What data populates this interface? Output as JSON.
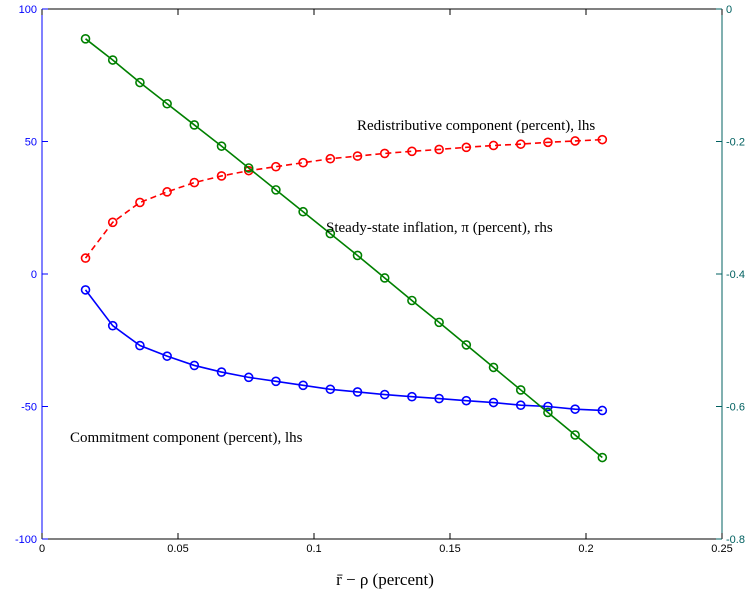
{
  "chart_data": {
    "type": "line",
    "xlabel": "r̄ − ρ (percent)",
    "xlim": [
      0,
      0.25
    ],
    "xticks": [
      "0",
      "0.05",
      "0.1",
      "0.15",
      "0.2",
      "0.25"
    ],
    "ylim_left": [
      -100,
      100
    ],
    "yticks_left": [
      "-100",
      "-50",
      "0",
      "50",
      "100"
    ],
    "ylim_right": [
      -0.8,
      0
    ],
    "yticks_right": [
      "-0.8",
      "-0.6",
      "-0.4",
      "-0.2",
      "0"
    ],
    "grid": false,
    "x": [
      0.016,
      0.026,
      0.036,
      0.046,
      0.056,
      0.066,
      0.076,
      0.086,
      0.096,
      0.106,
      0.116,
      0.126,
      0.136,
      0.146,
      0.156,
      0.166,
      0.176,
      0.186,
      0.196,
      0.206
    ],
    "series": [
      {
        "name": "Redistributive component (percent), lhs",
        "axis": "left",
        "color": "#ff0000",
        "linestyle": "dashed",
        "values": [
          6,
          19.5,
          27,
          31,
          34.5,
          37,
          39,
          40.5,
          42,
          43.5,
          44.5,
          45.5,
          46.3,
          47,
          47.8,
          48.5,
          49,
          49.7,
          50.2,
          50.7
        ]
      },
      {
        "name": "Commitment component (percent), lhs",
        "axis": "left",
        "color": "#0000ff",
        "linestyle": "solid",
        "values": [
          -6,
          -19.5,
          -27,
          -31,
          -34.5,
          -37,
          -39,
          -40.5,
          -42,
          -43.5,
          -44.5,
          -45.5,
          -46.3,
          -47,
          -47.8,
          -48.5,
          -49.5,
          -50,
          -51,
          -51.5
        ]
      },
      {
        "name": "Steady-state inflation, π (percent), rhs",
        "axis": "right",
        "color": "#008000",
        "linestyle": "solid",
        "values": [
          -0.045,
          -0.077,
          -0.111,
          -0.143,
          -0.175,
          -0.207,
          -0.24,
          -0.273,
          -0.306,
          -0.339,
          -0.372,
          -0.406,
          -0.44,
          -0.473,
          -0.507,
          -0.541,
          -0.575,
          -0.609,
          -0.643,
          -0.677
        ]
      }
    ],
    "annotations": [
      {
        "text": "Redistributive component (percent), lhs"
      },
      {
        "text": "Steady-state inflation, π (percent), rhs"
      },
      {
        "text": "Commitment component (percent), lhs"
      }
    ]
  },
  "colors": {
    "left_axis": "#0000ff",
    "right_axis": "#006060",
    "frame": "#000000"
  }
}
